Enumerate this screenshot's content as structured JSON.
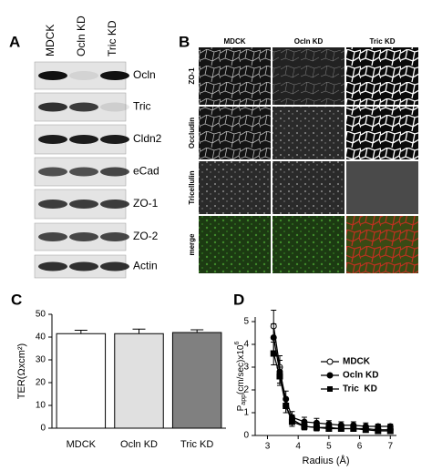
{
  "panel_a": {
    "label": "A",
    "lanes": [
      "MDCK",
      "Ocln KD",
      "Tric KD"
    ],
    "rows": [
      "Ocln",
      "Tric",
      "Cldn2",
      "eCad",
      "ZO-1",
      "ZO-2",
      "Actin"
    ]
  },
  "panel_b": {
    "label": "B",
    "columns": [
      "MDCK",
      "Ocln KD",
      "Tric KD"
    ],
    "rows": [
      "ZO-1",
      "Occludin",
      "Tricellulin",
      "merge"
    ]
  },
  "chart_data": [
    {
      "type": "bar",
      "panel": "C",
      "y_label": "TER(Ωxcm²)",
      "categories": [
        "MDCK",
        "Ocln KD",
        "Tric KD"
      ],
      "values": [
        41.5,
        41.5,
        42
      ],
      "errors": [
        1.5,
        2,
        1.2
      ],
      "colors": [
        "#ffffff",
        "#e0e0e0",
        "#808080"
      ],
      "ylim": [
        0,
        50
      ],
      "yticks": [
        0,
        10,
        20,
        30,
        40,
        50
      ]
    },
    {
      "type": "line",
      "panel": "D",
      "y_label": {
        "main": "P",
        "sub": "app",
        "rest": "(cm/sec)x10",
        "sup": "6"
      },
      "x_label": "Radius (Å)",
      "x": [
        3.2,
        3.4,
        3.6,
        3.8,
        4.2,
        4.6,
        5,
        5.4,
        5.8,
        6.2,
        6.6,
        7
      ],
      "series": [
        {
          "name": "MDCK",
          "marker": "open-circle",
          "values": [
            4.8,
            3.0,
            1.3,
            0.7,
            0.4,
            0.35,
            0.35,
            0.3,
            0.3,
            0.3,
            0.25,
            0.25
          ],
          "errors": [
            0.7,
            0.5,
            0.3,
            0.2,
            0.15,
            0.15,
            0.1,
            0.1,
            0.1,
            0.1,
            0.1,
            0.1
          ]
        },
        {
          "name": "Ocln KD",
          "marker": "circle",
          "values": [
            4.3,
            2.8,
            1.6,
            0.8,
            0.6,
            0.55,
            0.5,
            0.45,
            0.45,
            0.4,
            0.4,
            0.4
          ],
          "errors": [
            0.6,
            0.5,
            0.35,
            0.25,
            0.2,
            0.2,
            0.15,
            0.15,
            0.15,
            0.15,
            0.1,
            0.1
          ]
        },
        {
          "name": "Tric  KD",
          "marker": "square",
          "values": [
            3.6,
            2.6,
            1.3,
            0.6,
            0.4,
            0.35,
            0.3,
            0.3,
            0.3,
            0.25,
            0.2,
            0.2
          ],
          "errors": [
            0.5,
            0.4,
            0.3,
            0.2,
            0.15,
            0.1,
            0.1,
            0.1,
            0.1,
            0.1,
            0.1,
            0.1
          ]
        }
      ],
      "xlim": [
        2.6,
        7.2
      ],
      "ylim": [
        0,
        5.2
      ],
      "xticks": [
        3,
        4,
        5,
        6,
        7
      ],
      "yticks": [
        0,
        1,
        2,
        3,
        4,
        5
      ],
      "color": "#000000"
    }
  ]
}
